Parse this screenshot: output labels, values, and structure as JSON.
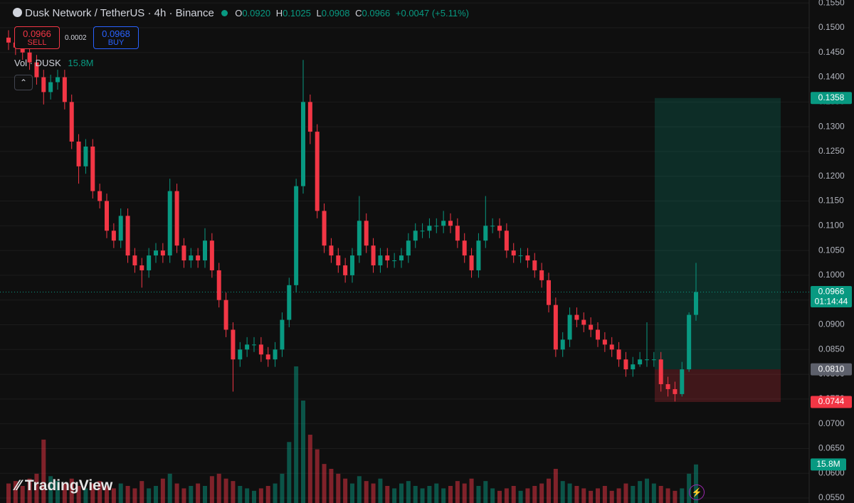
{
  "header": {
    "symbol": "Dusk Network / TetherUS · 4h · Binance",
    "ohlc": [
      {
        "k": "O",
        "v": "0.0920"
      },
      {
        "k": "H",
        "v": "0.1025"
      },
      {
        "k": "L",
        "v": "0.0908"
      },
      {
        "k": "C",
        "v": "0.0966"
      }
    ],
    "change": "+0.0047 (+5.11%)",
    "sell_price": "0.0966",
    "sell": "SELL",
    "spread": "0.0002",
    "buy_price": "0.0968",
    "buy": "BUY",
    "vol_name": "Vol · DUSK",
    "vol_value": "15.8M",
    "brand": "TradingView"
  },
  "chart_data": {
    "type": "candlestick",
    "up_color": "#089981",
    "down_color": "#f23645",
    "ylim": [
      0.054,
      0.1556
    ],
    "volume_ylim": [
      0,
      70
    ],
    "yticks": [
      {
        "value": 0.055,
        "label": "0.0550"
      },
      {
        "value": 0.06,
        "label": "0.0600"
      },
      {
        "value": 0.065,
        "label": "0.0650"
      },
      {
        "value": 0.07,
        "label": "0.0700"
      },
      {
        "value": 0.075,
        "label": "0.0750"
      },
      {
        "value": 0.08,
        "label": "0.0800"
      },
      {
        "value": 0.085,
        "label": "0.0850"
      },
      {
        "value": 0.09,
        "label": "0.0900"
      },
      {
        "value": 0.095,
        "label": "0.0950"
      },
      {
        "value": 0.1,
        "label": "0.1000"
      },
      {
        "value": 0.105,
        "label": "0.1050"
      },
      {
        "value": 0.11,
        "label": "0.1100"
      },
      {
        "value": 0.115,
        "label": "0.1150"
      },
      {
        "value": 0.12,
        "label": "0.1200"
      },
      {
        "value": 0.125,
        "label": "0.1250"
      },
      {
        "value": 0.13,
        "label": "0.1300"
      },
      {
        "value": 0.135,
        "label": "0.1350"
      },
      {
        "value": 0.14,
        "label": "0.1400"
      },
      {
        "value": 0.145,
        "label": "0.1450"
      },
      {
        "value": 0.15,
        "label": "0.1500"
      },
      {
        "value": 0.155,
        "label": "0.1550"
      }
    ],
    "open": [
      0.148,
      0.147,
      0.146,
      0.145,
      0.143,
      0.14,
      0.137,
      0.139,
      0.14,
      0.135,
      0.127,
      0.122,
      0.126,
      0.117,
      0.115,
      0.109,
      0.107,
      0.112,
      0.104,
      0.102,
      0.101,
      0.104,
      0.105,
      0.104,
      0.117,
      0.106,
      0.103,
      0.104,
      0.103,
      0.107,
      0.101,
      0.095,
      0.089,
      0.083,
      0.085,
      0.086,
      0.086,
      0.084,
      0.083,
      0.085,
      0.091,
      0.098,
      0.118,
      0.135,
      0.129,
      0.113,
      0.106,
      0.104,
      0.102,
      0.1,
      0.104,
      0.111,
      0.106,
      0.102,
      0.104,
      0.103,
      0.103,
      0.104,
      0.107,
      0.109,
      0.109,
      0.11,
      0.11,
      0.111,
      0.11,
      0.107,
      0.104,
      0.101,
      0.107,
      0.11,
      0.11,
      0.109,
      0.105,
      0.104,
      0.104,
      0.103,
      0.101,
      0.099,
      0.094,
      0.085,
      0.087,
      0.092,
      0.091,
      0.09,
      0.089,
      0.087,
      0.086,
      0.085,
      0.083,
      0.081,
      0.082,
      0.083,
      0.083,
      0.083,
      0.078,
      0.077,
      0.076,
      0.081,
      0.092
    ],
    "high": [
      0.1495,
      0.1485,
      0.1475,
      0.1465,
      0.1445,
      0.1415,
      0.1405,
      0.1415,
      0.1415,
      0.1365,
      0.1285,
      0.1275,
      0.1275,
      0.1185,
      0.1165,
      0.1105,
      0.1135,
      0.1135,
      0.1055,
      0.1035,
      0.1055,
      0.1065,
      0.1065,
      0.1195,
      0.1185,
      0.1075,
      0.1055,
      0.1055,
      0.1095,
      0.1085,
      0.1025,
      0.0965,
      0.0905,
      0.0865,
      0.0875,
      0.0875,
      0.0875,
      0.0855,
      0.0865,
      0.0925,
      0.0995,
      0.1195,
      0.1435,
      0.1365,
      0.1305,
      0.1145,
      0.1075,
      0.1055,
      0.1035,
      0.1055,
      0.116,
      0.1125,
      0.1075,
      0.1055,
      0.1055,
      0.1045,
      0.1055,
      0.1085,
      0.1105,
      0.1105,
      0.1115,
      0.1115,
      0.113,
      0.1125,
      0.1115,
      0.1085,
      0.1055,
      0.1085,
      0.116,
      0.1115,
      0.1115,
      0.1105,
      0.1065,
      0.1055,
      0.1055,
      0.1045,
      0.1025,
      0.1005,
      0.0955,
      0.0885,
      0.0935,
      0.0935,
      0.0925,
      0.0915,
      0.0905,
      0.0885,
      0.0875,
      0.0865,
      0.0845,
      0.0835,
      0.0845,
      0.0905,
      0.0845,
      0.0845,
      0.0795,
      0.0785,
      0.0825,
      0.0925,
      0.1025
    ],
    "low": [
      0.1455,
      0.1445,
      0.1435,
      0.1415,
      0.1385,
      0.1345,
      0.1355,
      0.1375,
      0.1335,
      0.1255,
      0.1185,
      0.1205,
      0.1155,
      0.1135,
      0.1075,
      0.1055,
      0.1055,
      0.1025,
      0.1005,
      0.0975,
      0.0995,
      0.1025,
      0.1025,
      0.1025,
      0.1045,
      0.1015,
      0.1015,
      0.1015,
      0.1015,
      0.0995,
      0.0935,
      0.0875,
      0.0765,
      0.0815,
      0.0835,
      0.0845,
      0.0825,
      0.0815,
      0.0815,
      0.0835,
      0.0895,
      0.0965,
      0.1165,
      0.1265,
      0.1115,
      0.1045,
      0.1025,
      0.1005,
      0.0985,
      0.0985,
      0.1025,
      0.1045,
      0.1005,
      0.1005,
      0.1015,
      0.1015,
      0.1015,
      0.1025,
      0.1055,
      0.1075,
      0.1075,
      0.1085,
      0.1085,
      0.1085,
      0.1055,
      0.1025,
      0.0995,
      0.0995,
      0.1055,
      0.1085,
      0.1075,
      0.1035,
      0.1025,
      0.1025,
      0.1015,
      0.0995,
      0.0975,
      0.0925,
      0.0835,
      0.0835,
      0.0855,
      0.0895,
      0.0885,
      0.0875,
      0.0855,
      0.0845,
      0.0835,
      0.0815,
      0.0795,
      0.0795,
      0.0815,
      0.0815,
      0.0815,
      0.0765,
      0.0755,
      0.0745,
      0.0755,
      0.0805,
      0.0908
    ],
    "close": [
      0.147,
      0.146,
      0.145,
      0.143,
      0.14,
      0.137,
      0.139,
      0.14,
      0.135,
      0.127,
      0.122,
      0.126,
      0.117,
      0.115,
      0.109,
      0.107,
      0.112,
      0.104,
      0.102,
      0.101,
      0.104,
      0.105,
      0.104,
      0.117,
      0.106,
      0.103,
      0.104,
      0.103,
      0.107,
      0.101,
      0.095,
      0.089,
      0.083,
      0.085,
      0.086,
      0.086,
      0.084,
      0.083,
      0.085,
      0.091,
      0.098,
      0.118,
      0.135,
      0.129,
      0.113,
      0.106,
      0.104,
      0.102,
      0.1,
      0.104,
      0.111,
      0.106,
      0.102,
      0.104,
      0.103,
      0.103,
      0.104,
      0.107,
      0.109,
      0.109,
      0.11,
      0.11,
      0.111,
      0.11,
      0.107,
      0.104,
      0.101,
      0.107,
      0.11,
      0.11,
      0.109,
      0.105,
      0.104,
      0.104,
      0.103,
      0.101,
      0.099,
      0.094,
      0.085,
      0.087,
      0.092,
      0.091,
      0.09,
      0.089,
      0.087,
      0.086,
      0.085,
      0.083,
      0.081,
      0.082,
      0.083,
      0.083,
      0.083,
      0.078,
      0.077,
      0.076,
      0.081,
      0.092,
      0.0966
    ],
    "volume": [
      8,
      9,
      7,
      10,
      12,
      26,
      11,
      9,
      8,
      10,
      7,
      6,
      8,
      9,
      7,
      6,
      8,
      7,
      6,
      9,
      6,
      7,
      10,
      12,
      8,
      6,
      7,
      8,
      7,
      11,
      12,
      10,
      9,
      7,
      6,
      5,
      6,
      7,
      8,
      12,
      25,
      56,
      42,
      28,
      22,
      16,
      14,
      12,
      10,
      8,
      11,
      9,
      8,
      10,
      7,
      6,
      8,
      9,
      7,
      6,
      7,
      8,
      6,
      7,
      9,
      8,
      10,
      7,
      9,
      6,
      5,
      6,
      7,
      5,
      6,
      7,
      8,
      10,
      14,
      9,
      8,
      7,
      6,
      5,
      6,
      7,
      5,
      6,
      8,
      7,
      9,
      10,
      8,
      7,
      6,
      5,
      6,
      12,
      15.8
    ],
    "price_labels": [
      {
        "value": 0.1358,
        "label": "0.1358",
        "color": "#089981"
      },
      {
        "value": 0.0966,
        "label": "0.0966",
        "sublabel": "01:14:44",
        "color": "#089981"
      },
      {
        "value": 0.081,
        "label": "0.0810",
        "color": "#5d606b"
      },
      {
        "value": 0.0744,
        "label": "0.0744",
        "color": "#f23645"
      }
    ]
  }
}
